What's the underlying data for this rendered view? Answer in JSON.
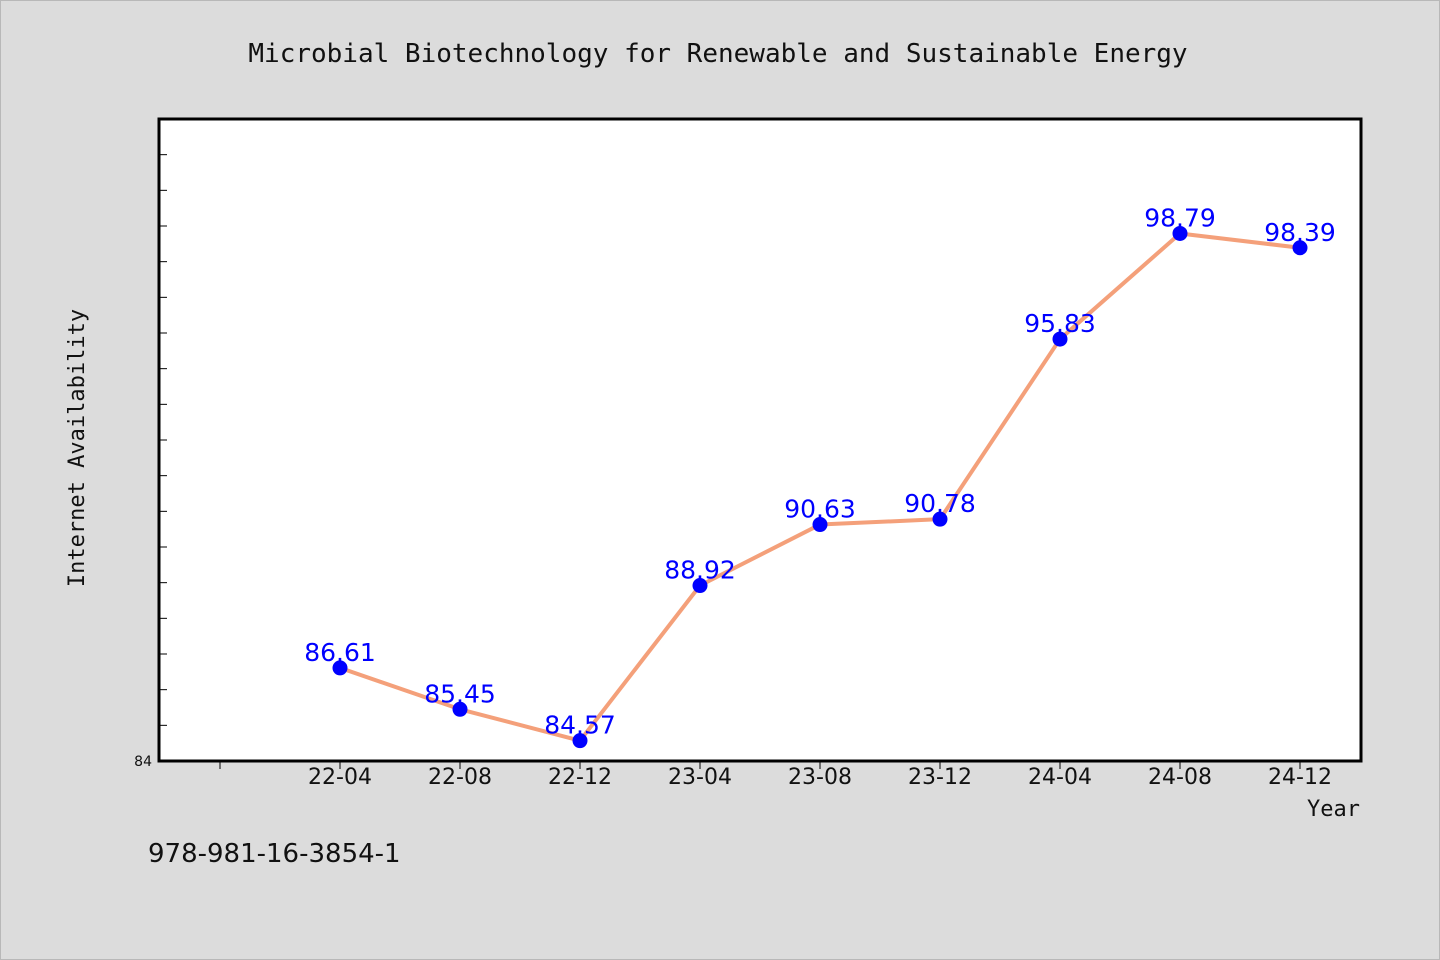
{
  "chart_data": {
    "type": "line",
    "title": "Microbial Biotechnology for Renewable and Sustainable Energy",
    "xlabel": "Year",
    "ylabel": "Internet Availability",
    "categories": [
      "22-04",
      "22-08",
      "22-12",
      "23-04",
      "23-08",
      "23-12",
      "24-04",
      "24-08",
      "24-12"
    ],
    "values": [
      86.61,
      85.45,
      84.57,
      88.92,
      90.63,
      90.78,
      95.83,
      98.79,
      98.39
    ],
    "y_tick_labels": [
      "84"
    ],
    "ylim": [
      84,
      102
    ],
    "grid": false,
    "legend": "none",
    "line_color": "#f4a07a",
    "marker_color": "#0000ff",
    "label_color": "#0000ff"
  },
  "footer": {
    "isbn": "978-981-16-3854-1"
  }
}
